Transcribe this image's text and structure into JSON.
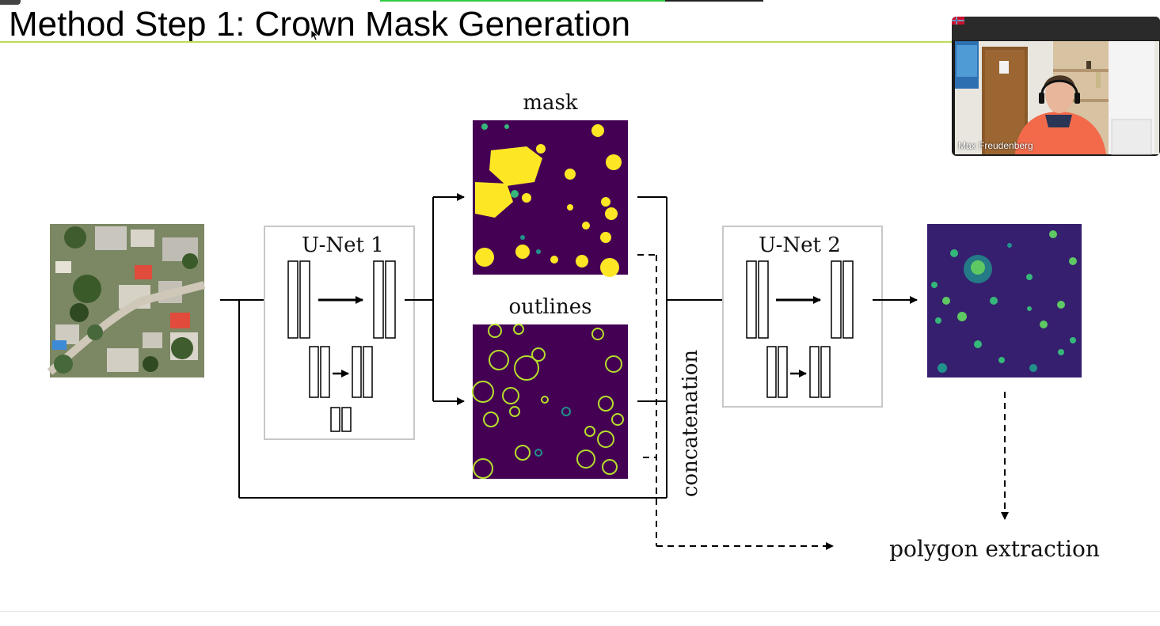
{
  "slide": {
    "title": "Method Step 1: Crown Mask Generation"
  },
  "diagram": {
    "unet1_label": "U-Net 1",
    "unet2_label": "U-Net 2",
    "mask_label": "mask",
    "outlines_label": "outlines",
    "concat_label": "concatenation",
    "polygon_label": "polygon extraction"
  },
  "video": {
    "participant_name": "Max Freudenberg"
  },
  "colors": {
    "title_rule": "#b9dc5a",
    "viridis_dark": "#440154",
    "viridis_yellow": "#fde725",
    "viridis_green": "#35b779",
    "viridis_teal": "#21918c"
  }
}
